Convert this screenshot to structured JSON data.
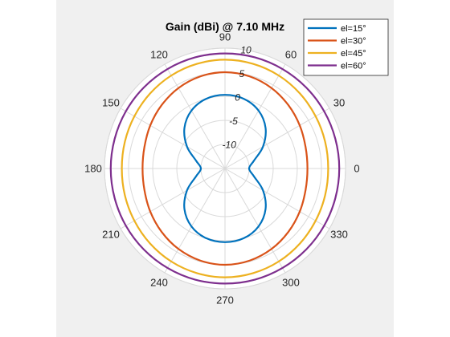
{
  "chart_data": {
    "type": "polar-line",
    "title": "Gain (dBi) @ 7.10 MHz",
    "theta_ticks": [
      0,
      30,
      60,
      90,
      120,
      150,
      180,
      210,
      240,
      270,
      300,
      330
    ],
    "r_ticks": [
      -10,
      -5,
      0,
      5,
      10
    ],
    "r_lim": [
      -15,
      10
    ],
    "legend_position": "top-right",
    "grid": true,
    "series": [
      {
        "name": "el=15°  ",
        "color": "#0072BD",
        "azimuth_deg": [
          0,
          15,
          30,
          45,
          60,
          75,
          90,
          105,
          120,
          135,
          150,
          165,
          180,
          195,
          210,
          225,
          240,
          255,
          270,
          285,
          300,
          315,
          330,
          345
        ],
        "gain_dbi": [
          -10.0,
          -8.8,
          -5.9,
          -3.1,
          -1.1,
          0.0,
          0.3,
          0.0,
          -1.1,
          -3.1,
          -5.9,
          -8.8,
          -10.0,
          -8.8,
          -5.9,
          -3.1,
          -1.1,
          0.0,
          0.3,
          0.0,
          -1.1,
          -3.1,
          -5.9,
          -8.8
        ]
      },
      {
        "name": "el=30°",
        "color": "#D95319",
        "azimuth_deg": [
          0,
          15,
          30,
          45,
          60,
          75,
          90,
          105,
          120,
          135,
          150,
          165,
          180,
          195,
          210,
          225,
          240,
          255,
          270,
          285,
          300,
          315,
          330,
          345
        ],
        "gain_dbi": [
          2.1,
          2.3,
          2.9,
          3.6,
          4.3,
          4.8,
          5.0,
          4.8,
          4.3,
          3.6,
          2.9,
          2.3,
          2.1,
          2.3,
          2.9,
          3.6,
          4.3,
          4.8,
          5.0,
          4.8,
          4.3,
          3.6,
          2.9,
          2.3
        ]
      },
      {
        "name": "el=45°",
        "color": "#EDB120",
        "azimuth_deg": [
          0,
          15,
          30,
          45,
          60,
          75,
          90,
          105,
          120,
          135,
          150,
          165,
          180,
          195,
          210,
          225,
          240,
          255,
          270,
          285,
          300,
          315,
          330,
          345
        ],
        "gain_dbi": [
          6.4,
          6.5,
          6.7,
          7.0,
          7.3,
          7.5,
          7.6,
          7.5,
          7.3,
          7.0,
          6.7,
          6.5,
          6.4,
          6.5,
          6.7,
          7.0,
          7.3,
          7.5,
          7.6,
          7.5,
          7.3,
          7.0,
          6.7,
          6.5
        ]
      },
      {
        "name": "el=60°",
        "color": "#7E2F8E",
        "azimuth_deg": [
          0,
          15,
          30,
          45,
          60,
          75,
          90,
          105,
          120,
          135,
          150,
          165,
          180,
          195,
          210,
          225,
          240,
          255,
          270,
          285,
          300,
          315,
          330,
          345
        ],
        "gain_dbi": [
          8.7,
          8.7,
          8.75,
          8.8,
          8.85,
          8.9,
          8.9,
          8.9,
          8.85,
          8.8,
          8.75,
          8.7,
          8.7,
          8.7,
          8.75,
          8.8,
          8.85,
          8.9,
          8.9,
          8.9,
          8.85,
          8.8,
          8.75,
          8.7
        ]
      }
    ]
  }
}
